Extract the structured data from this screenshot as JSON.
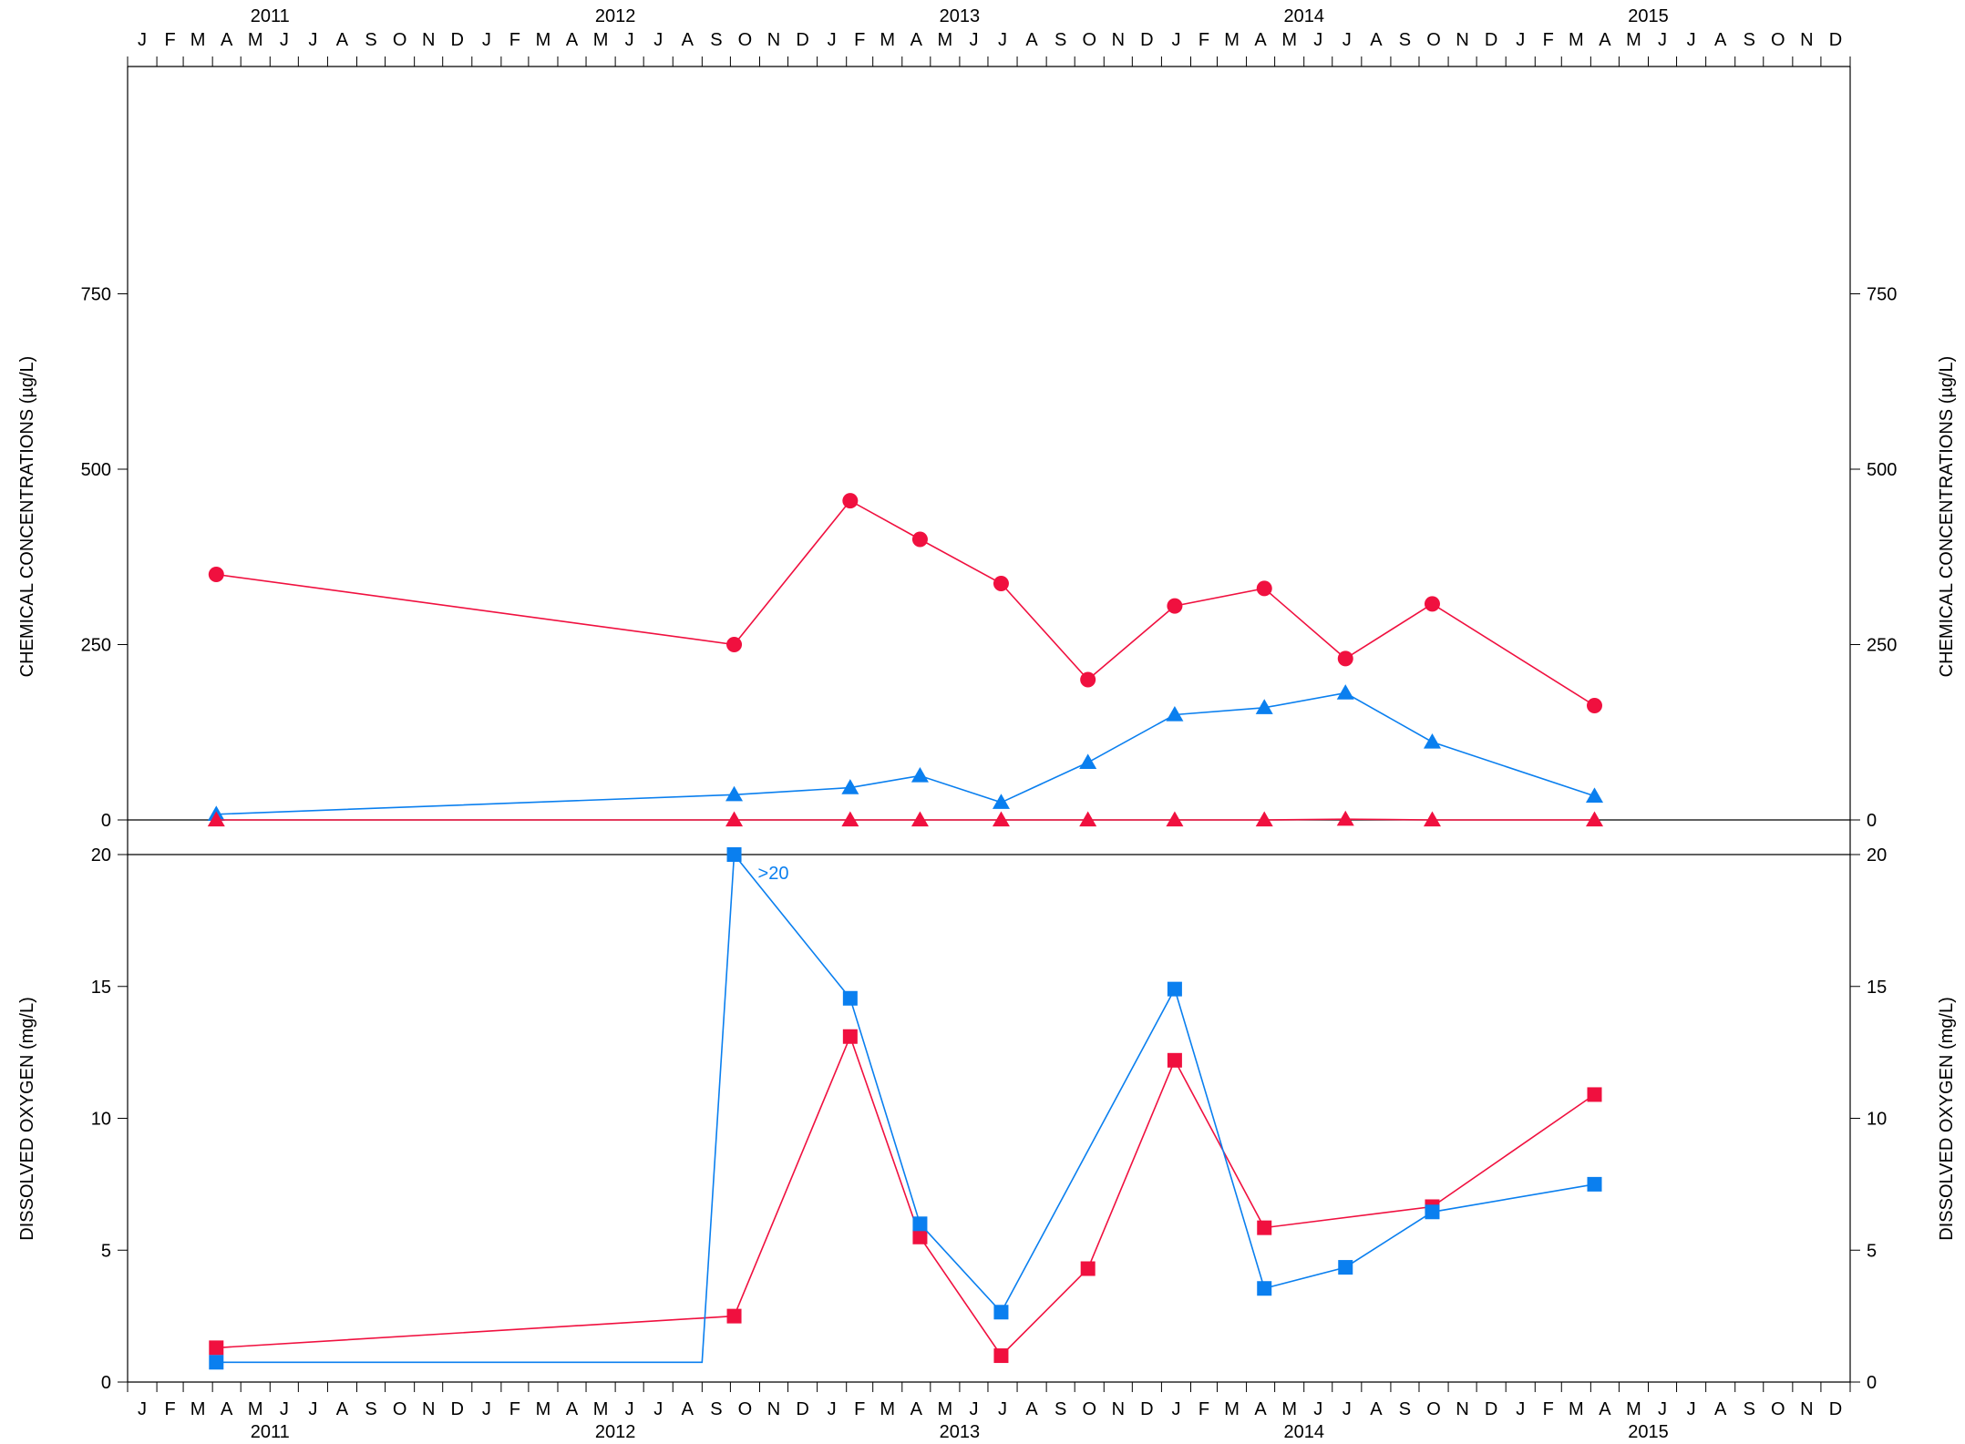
{
  "chart_data": [
    {
      "type": "line",
      "panel": "top",
      "ylabel": "CHEMICAL CONCENTRATIONS (µg/L)",
      "ylim": [
        0,
        1000
      ],
      "yticks": [
        0,
        250,
        500,
        750
      ],
      "xlim": [
        "2011-01-01",
        "2015-12-31"
      ],
      "years": [
        "2011",
        "2012",
        "2013",
        "2014",
        "2015"
      ],
      "month_labels": [
        "J",
        "F",
        "M",
        "A",
        "M",
        "J",
        "J",
        "A",
        "S",
        "O",
        "N",
        "D"
      ],
      "grid": false,
      "series": [
        {
          "marker": "circle",
          "color": "#f0103f",
          "points": [
            [
              "2011-04-05",
              350
            ],
            [
              "2012-10-05",
              250
            ],
            [
              "2013-02-05",
              455
            ],
            [
              "2013-04-20",
              400
            ],
            [
              "2013-07-15",
              337
            ],
            [
              "2013-10-15",
              200
            ],
            [
              "2014-01-15",
              305
            ],
            [
              "2014-04-20",
              330
            ],
            [
              "2014-07-15",
              230
            ],
            [
              "2014-10-15",
              308
            ],
            [
              "2015-04-05",
              163
            ]
          ]
        },
        {
          "marker": "triangle",
          "color": "#0a7fef",
          "points": [
            [
              "2011-04-05",
              8
            ],
            [
              "2012-10-05",
              36
            ],
            [
              "2013-02-05",
              46
            ],
            [
              "2013-04-20",
              63
            ],
            [
              "2013-07-15",
              25
            ],
            [
              "2013-10-15",
              82
            ],
            [
              "2014-01-15",
              150
            ],
            [
              "2014-04-20",
              160
            ],
            [
              "2014-07-15",
              181
            ],
            [
              "2014-10-15",
              111
            ],
            [
              "2015-04-05",
              34
            ]
          ]
        },
        {
          "marker": "triangle",
          "color": "#f0103f",
          "points": [
            [
              "2011-04-05",
              0
            ],
            [
              "2012-10-05",
              0
            ],
            [
              "2013-02-05",
              0
            ],
            [
              "2013-04-20",
              0
            ],
            [
              "2013-07-15",
              0
            ],
            [
              "2013-10-15",
              0
            ],
            [
              "2014-01-15",
              0
            ],
            [
              "2014-04-20",
              0
            ],
            [
              "2014-07-15",
              1
            ],
            [
              "2014-10-15",
              0
            ],
            [
              "2015-04-05",
              0
            ]
          ]
        }
      ]
    },
    {
      "type": "line",
      "panel": "bottom",
      "ylabel": "DISSOLVED OXYGEN (mg/L)",
      "ylim": [
        0,
        20
      ],
      "yticks": [
        0,
        5,
        10,
        15,
        20
      ],
      "xlim": [
        "2011-01-01",
        "2015-12-31"
      ],
      "grid": false,
      "annotations": [
        {
          "text": ">20",
          "x": "2012-10-05",
          "y": 20,
          "color": "#0a7fef"
        }
      ],
      "series": [
        {
          "marker": "square",
          "color": "#f0103f",
          "points": [
            [
              "2011-04-05",
              1.3
            ],
            [
              "2012-10-05",
              2.5
            ],
            [
              "2013-02-05",
              13.1
            ],
            [
              "2013-04-20",
              5.5
            ],
            [
              "2013-07-15",
              1.0
            ],
            [
              "2013-10-15",
              4.3
            ],
            [
              "2014-01-15",
              12.2
            ],
            [
              "2014-04-20",
              5.85
            ],
            [
              "2014-10-15",
              6.65
            ],
            [
              "2015-04-05",
              10.9
            ]
          ]
        },
        {
          "marker": "square",
          "color": "#0a7fef",
          "points": [
            [
              "2011-04-05",
              0.75
            ],
            [
              "2012-10-05",
              20
            ],
            [
              "2013-02-05",
              14.55
            ],
            [
              "2013-04-20",
              6.0
            ],
            [
              "2013-07-15",
              2.65
            ],
            [
              "2014-01-15",
              14.9
            ],
            [
              "2014-04-20",
              3.55
            ],
            [
              "2014-07-15",
              4.35
            ],
            [
              "2014-10-15",
              6.45
            ],
            [
              "2015-04-05",
              7.5
            ]
          ],
          "line_points": [
            [
              "2011-04-05",
              0.75
            ],
            [
              "2012-09-01",
              0.75
            ],
            [
              "2012-10-05",
              20
            ],
            [
              "2013-02-05",
              14.55
            ],
            [
              "2013-04-20",
              6.0
            ],
            [
              "2013-07-15",
              2.65
            ],
            [
              "2014-01-15",
              14.9
            ],
            [
              "2014-04-20",
              3.55
            ],
            [
              "2014-07-15",
              4.35
            ],
            [
              "2014-10-15",
              6.45
            ],
            [
              "2015-04-05",
              7.5
            ]
          ]
        }
      ]
    }
  ]
}
